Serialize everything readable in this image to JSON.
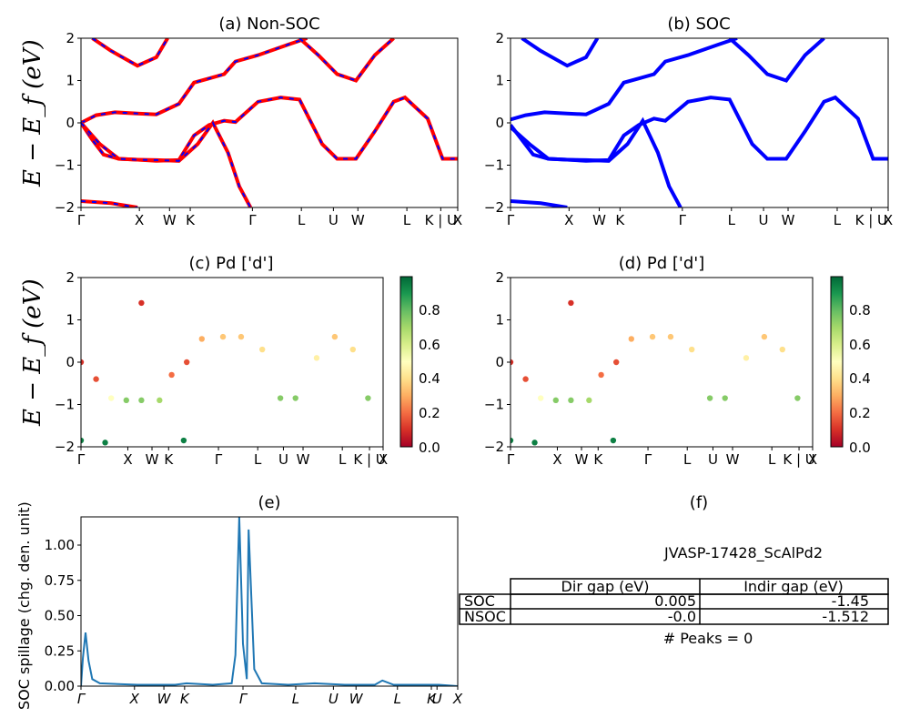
{
  "panels": {
    "a": {
      "title": "(a) Non-SOC"
    },
    "b": {
      "title": "(b) SOC"
    },
    "c": {
      "title": "(c)  Pd ['d']"
    },
    "d": {
      "title": "(d) Pd ['d']"
    },
    "e": {
      "title": "(e)"
    },
    "f": {
      "title": "(f)"
    }
  },
  "ylabel_band": "E − E_f (eV)",
  "ylabel_spill": "SOC spillage (chg. den. unit)",
  "kpath_labels": [
    "Γ",
    "X",
    "W",
    "K",
    "Γ",
    "L",
    "U",
    "W",
    "L",
    "K | U",
    "X"
  ],
  "kpath_labels_e": [
    "Γ",
    "X",
    "W",
    "K",
    "Γ",
    "L",
    "U",
    "W",
    "L",
    "K",
    "U",
    "X"
  ],
  "yticks_band": [
    "2",
    "1",
    "0",
    "−1",
    "−2"
  ],
  "yticks_spill": [
    "1.00",
    "0.75",
    "0.50",
    "0.25",
    "0.00"
  ],
  "colorbar_ticks": [
    "0.8",
    "0.6",
    "0.4",
    "0.2",
    "0.0"
  ],
  "info": {
    "material": "JVASP-17428_ScAlPd2",
    "col_dir": "Dir gap (eV)",
    "col_indir": "Indir gap (eV)",
    "row_soc": "SOC",
    "row_nsoc": "NSOC",
    "soc_dir": "0.005",
    "soc_indir": "-1.45",
    "nsoc_dir": "-0.0",
    "nsoc_indir": "-1.512",
    "peaks": "# Peaks = 0"
  },
  "colors": {
    "nonsoc": "#ff0000",
    "nonsoc_dash": "#0000ff",
    "soc": "#0000ff",
    "spill": "#1f77b4"
  },
  "chart_data": [
    {
      "type": "line",
      "panel": "a",
      "title": "(a) Non-SOC",
      "ylabel": "E − E_f (eV)",
      "ylim": [
        -2,
        2
      ],
      "series": [
        {
          "values": [
            [
              0,
              0
            ],
            [
              0.04,
              0.18
            ],
            [
              0.09,
              0.25
            ],
            [
              0.15,
              0.22
            ],
            [
              0.2,
              0.2
            ],
            [
              0.26,
              0.45
            ],
            [
              0.3,
              0.95
            ],
            [
              0.34,
              1.05
            ],
            [
              0.38,
              1.15
            ],
            [
              0.41,
              1.45
            ],
            [
              0.47,
              1.6
            ],
            [
              0.55,
              1.85
            ],
            [
              0.6,
              2
            ]
          ]
        },
        {
          "values": [
            [
              0,
              0
            ],
            [
              0.03,
              -0.4
            ],
            [
              0.06,
              -0.75
            ],
            [
              0.1,
              -0.85
            ],
            [
              0.15,
              -0.87
            ],
            [
              0.2,
              -0.9
            ],
            [
              0.26,
              -0.88
            ],
            [
              0.3,
              -0.3
            ],
            [
              0.34,
              -0.05
            ],
            [
              0.38,
              0.05
            ],
            [
              0.41,
              0.02
            ],
            [
              0.47,
              0.5
            ],
            [
              0.53,
              0.6
            ],
            [
              0.58,
              0.55
            ],
            [
              0.64,
              -0.5
            ],
            [
              0.68,
              -0.85
            ],
            [
              0.73,
              -0.85
            ],
            [
              0.78,
              -0.2
            ],
            [
              0.83,
              0.5
            ],
            [
              0.86,
              0.6
            ],
            [
              0.92,
              0.1
            ],
            [
              0.96,
              -0.85
            ],
            [
              1,
              -0.85
            ]
          ]
        },
        {
          "values": [
            [
              0,
              0
            ],
            [
              0.05,
              -0.5
            ],
            [
              0.1,
              -0.85
            ],
            [
              0.15,
              -0.87
            ],
            [
              0.2,
              -0.88
            ],
            [
              0.26,
              -0.9
            ],
            [
              0.31,
              -0.5
            ],
            [
              0.35,
              0
            ],
            [
              0.39,
              -0.7
            ],
            [
              0.42,
              -1.5
            ],
            [
              0.45,
              -2
            ]
          ]
        },
        {
          "values": [
            [
              0,
              -1.85
            ],
            [
              0.08,
              -1.9
            ],
            [
              0.15,
              -2
            ]
          ]
        },
        {
          "values": [
            [
              0.03,
              2
            ],
            [
              0.08,
              1.7
            ],
            [
              0.15,
              1.35
            ],
            [
              0.2,
              1.55
            ],
            [
              0.23,
              2
            ]
          ]
        },
        {
          "values": [
            [
              0.58,
              2
            ],
            [
              0.63,
              1.6
            ],
            [
              0.68,
              1.15
            ],
            [
              0.73,
              1.0
            ],
            [
              0.78,
              1.6
            ],
            [
              0.83,
              2
            ]
          ]
        }
      ]
    },
    {
      "type": "line",
      "panel": "b",
      "title": "(b) SOC",
      "ylim": [
        -2,
        2
      ],
      "series": [
        {
          "values": [
            [
              0,
              0.08
            ],
            [
              0.04,
              0.18
            ],
            [
              0.09,
              0.25
            ],
            [
              0.15,
              0.22
            ],
            [
              0.2,
              0.2
            ],
            [
              0.26,
              0.45
            ],
            [
              0.3,
              0.95
            ],
            [
              0.34,
              1.05
            ],
            [
              0.38,
              1.15
            ],
            [
              0.41,
              1.45
            ],
            [
              0.47,
              1.6
            ],
            [
              0.55,
              1.85
            ],
            [
              0.6,
              2
            ]
          ]
        },
        {
          "values": [
            [
              0,
              -0.05
            ],
            [
              0.03,
              -0.4
            ],
            [
              0.06,
              -0.75
            ],
            [
              0.1,
              -0.85
            ],
            [
              0.15,
              -0.87
            ],
            [
              0.2,
              -0.9
            ],
            [
              0.26,
              -0.88
            ],
            [
              0.3,
              -0.3
            ],
            [
              0.34,
              -0.05
            ],
            [
              0.38,
              0.1
            ],
            [
              0.41,
              0.05
            ],
            [
              0.47,
              0.5
            ],
            [
              0.53,
              0.6
            ],
            [
              0.58,
              0.55
            ],
            [
              0.64,
              -0.5
            ],
            [
              0.68,
              -0.85
            ],
            [
              0.73,
              -0.85
            ],
            [
              0.78,
              -0.2
            ],
            [
              0.83,
              0.5
            ],
            [
              0.86,
              0.6
            ],
            [
              0.92,
              0.1
            ],
            [
              0.96,
              -0.85
            ],
            [
              1,
              -0.85
            ]
          ]
        },
        {
          "values": [
            [
              0,
              -0.1
            ],
            [
              0.05,
              -0.5
            ],
            [
              0.1,
              -0.85
            ],
            [
              0.15,
              -0.87
            ],
            [
              0.2,
              -0.88
            ],
            [
              0.26,
              -0.9
            ],
            [
              0.31,
              -0.5
            ],
            [
              0.35,
              0.05
            ],
            [
              0.39,
              -0.7
            ],
            [
              0.42,
              -1.5
            ],
            [
              0.45,
              -2
            ]
          ]
        },
        {
          "values": [
            [
              0,
              -1.85
            ],
            [
              0.08,
              -1.9
            ],
            [
              0.15,
              -2
            ]
          ]
        },
        {
          "values": [
            [
              0.03,
              2
            ],
            [
              0.08,
              1.7
            ],
            [
              0.15,
              1.35
            ],
            [
              0.2,
              1.55
            ],
            [
              0.23,
              2
            ]
          ]
        },
        {
          "values": [
            [
              0.58,
              2
            ],
            [
              0.63,
              1.6
            ],
            [
              0.68,
              1.15
            ],
            [
              0.73,
              1.0
            ],
            [
              0.78,
              1.6
            ],
            [
              0.83,
              2
            ]
          ]
        }
      ]
    },
    {
      "type": "scatter",
      "panel": "c",
      "title": "(c)  Pd ['d']",
      "ylim": [
        -2,
        2
      ],
      "clim": [
        0,
        1
      ],
      "points": [
        [
          0,
          0,
          0.1
        ],
        [
          0.05,
          -0.4,
          0.15
        ],
        [
          0.1,
          -0.85,
          0.5
        ],
        [
          0.15,
          -0.9,
          0.75
        ],
        [
          0.2,
          -0.9,
          0.75
        ],
        [
          0.26,
          -0.9,
          0.7
        ],
        [
          0.3,
          -0.3,
          0.2
        ],
        [
          0.35,
          0,
          0.15
        ],
        [
          0.4,
          0.55,
          0.3
        ],
        [
          0.47,
          0.6,
          0.35
        ],
        [
          0.53,
          0.6,
          0.35
        ],
        [
          0.6,
          0.3,
          0.4
        ],
        [
          0.66,
          -0.85,
          0.75
        ],
        [
          0.71,
          -0.85,
          0.75
        ],
        [
          0.78,
          0.1,
          0.45
        ],
        [
          0.84,
          0.6,
          0.35
        ],
        [
          0.9,
          0.3,
          0.4
        ],
        [
          0.95,
          -0.85,
          0.75
        ],
        [
          0,
          -1.85,
          0.95
        ],
        [
          0.08,
          -1.9,
          0.95
        ],
        [
          0.34,
          -1.85,
          0.95
        ],
        [
          0.2,
          1.4,
          0.1
        ]
      ]
    },
    {
      "type": "scatter",
      "panel": "d",
      "title": "(d) Pd ['d']",
      "ylim": [
        -2,
        2
      ],
      "clim": [
        0,
        1
      ],
      "points": [
        [
          0,
          0,
          0.1
        ],
        [
          0.05,
          -0.4,
          0.15
        ],
        [
          0.1,
          -0.85,
          0.5
        ],
        [
          0.15,
          -0.9,
          0.75
        ],
        [
          0.2,
          -0.9,
          0.75
        ],
        [
          0.26,
          -0.9,
          0.7
        ],
        [
          0.3,
          -0.3,
          0.2
        ],
        [
          0.35,
          0,
          0.15
        ],
        [
          0.4,
          0.55,
          0.3
        ],
        [
          0.47,
          0.6,
          0.35
        ],
        [
          0.53,
          0.6,
          0.35
        ],
        [
          0.6,
          0.3,
          0.4
        ],
        [
          0.66,
          -0.85,
          0.75
        ],
        [
          0.71,
          -0.85,
          0.75
        ],
        [
          0.78,
          0.1,
          0.45
        ],
        [
          0.84,
          0.6,
          0.35
        ],
        [
          0.9,
          0.3,
          0.4
        ],
        [
          0.95,
          -0.85,
          0.75
        ],
        [
          0,
          -1.85,
          0.95
        ],
        [
          0.08,
          -1.9,
          0.95
        ],
        [
          0.34,
          -1.85,
          0.95
        ],
        [
          0.2,
          1.4,
          0.1
        ]
      ]
    },
    {
      "type": "line",
      "panel": "e",
      "title": "(e)",
      "ylabel": "SOC spillage (chg. den. unit)",
      "ylim": [
        0,
        1.2
      ],
      "series": [
        {
          "values": [
            [
              0,
              0
            ],
            [
              0.005,
              0.2
            ],
            [
              0.012,
              0.38
            ],
            [
              0.02,
              0.18
            ],
            [
              0.03,
              0.05
            ],
            [
              0.05,
              0.02
            ],
            [
              0.1,
              0.015
            ],
            [
              0.15,
              0.01
            ],
            [
              0.25,
              0.01
            ],
            [
              0.28,
              0.02
            ],
            [
              0.35,
              0.01
            ],
            [
              0.4,
              0.02
            ],
            [
              0.41,
              0.22
            ],
            [
              0.42,
              1.2
            ],
            [
              0.43,
              0.3
            ],
            [
              0.44,
              0.05
            ],
            [
              0.445,
              1.11
            ],
            [
              0.46,
              0.12
            ],
            [
              0.48,
              0.02
            ],
            [
              0.55,
              0.01
            ],
            [
              0.62,
              0.02
            ],
            [
              0.7,
              0.01
            ],
            [
              0.78,
              0.01
            ],
            [
              0.8,
              0.04
            ],
            [
              0.83,
              0.01
            ],
            [
              0.9,
              0.01
            ],
            [
              0.95,
              0.01
            ],
            [
              1,
              0
            ]
          ]
        }
      ]
    }
  ]
}
